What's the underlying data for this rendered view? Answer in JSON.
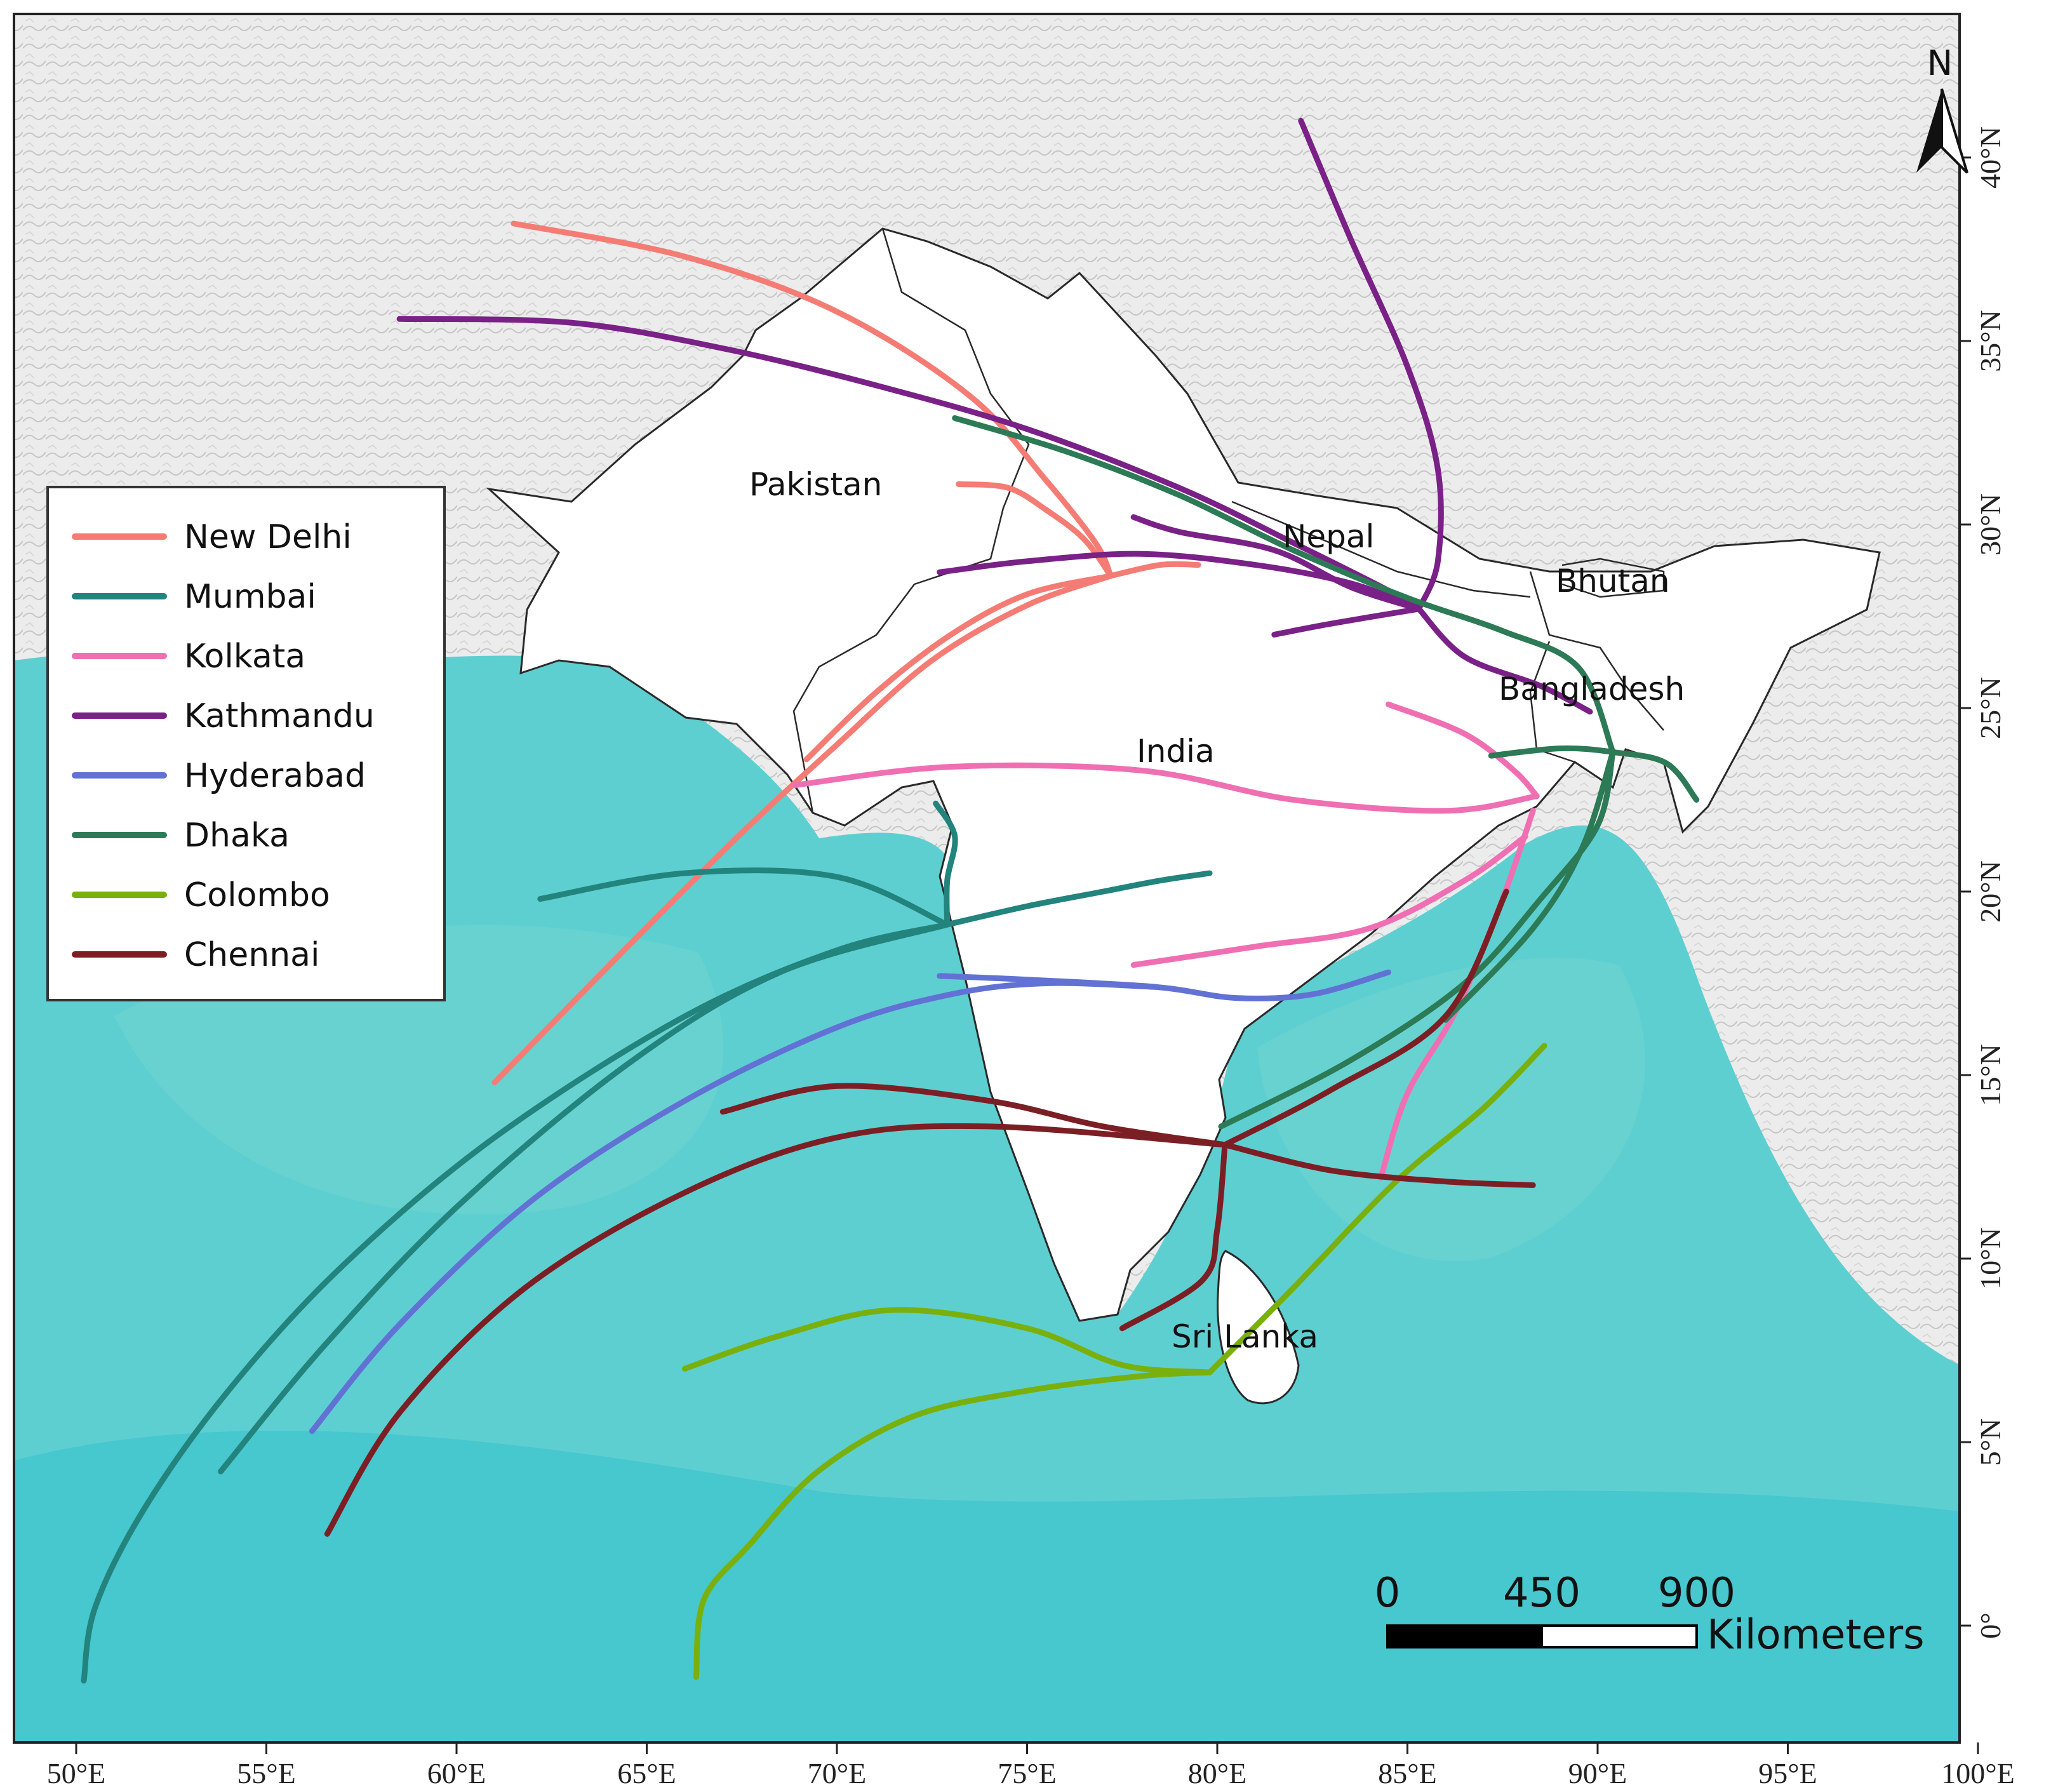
{
  "north_arrow": {
    "label": "N"
  },
  "axes": {
    "x_ticks": [
      "50°E",
      "55°E",
      "60°E",
      "65°E",
      "70°E",
      "75°E",
      "80°E",
      "85°E",
      "90°E",
      "95°E",
      "100°E"
    ],
    "y_ticks": [
      "0°",
      "5°N",
      "10°N",
      "15°N",
      "20°N",
      "25°N",
      "30°N",
      "35°N",
      "40°N"
    ]
  },
  "countries": [
    "Pakistan",
    "Nepal",
    "Bhutan",
    "Bangladesh",
    "India",
    "Sri Lanka"
  ],
  "scale_bar": {
    "ticks": [
      "0",
      "450",
      "900"
    ],
    "unit": "Kilometers"
  },
  "legend": [
    {
      "name": "New Delhi",
      "color": "#f47c74"
    },
    {
      "name": "Mumbai",
      "color": "#23837d"
    },
    {
      "name": "Kolkata",
      "color": "#ef6fb2"
    },
    {
      "name": "Kathmandu",
      "color": "#7a2187"
    },
    {
      "name": "Hyderabad",
      "color": "#6272d4"
    },
    {
      "name": "Dhaka",
      "color": "#2c7a56"
    },
    {
      "name": "Colombo",
      "color": "#79b00e"
    },
    {
      "name": "Chennai",
      "color": "#7c1f25"
    }
  ],
  "colors": {
    "ocean": "#5ecfd0",
    "ocean_deep": "#3fc3cc",
    "land": "#e9e9e9",
    "study_region": "#ffffff"
  },
  "trajectories": {
    "New Delhi": [
      [
        [
          61.5,
          38.2
        ],
        [
          66,
          37.3
        ],
        [
          70,
          35.8
        ],
        [
          73.5,
          33.5
        ],
        [
          75.5,
          31.2
        ],
        [
          76.8,
          29.5
        ],
        [
          77.2,
          28.6
        ]
      ],
      [
        [
          61,
          14.8
        ],
        [
          64.5,
          18.5
        ],
        [
          67.5,
          21.6
        ],
        [
          70,
          24
        ],
        [
          72.5,
          26.3
        ],
        [
          75,
          27.8
        ],
        [
          77.2,
          28.6
        ]
      ],
      [
        [
          69.2,
          23.6
        ],
        [
          71,
          25.4
        ],
        [
          73,
          27
        ],
        [
          75,
          28.1
        ],
        [
          77.2,
          28.6
        ]
      ],
      [
        [
          73.2,
          31.1
        ],
        [
          74.5,
          31
        ],
        [
          75.5,
          30.4
        ],
        [
          76.5,
          29.6
        ],
        [
          77.2,
          28.6
        ]
      ],
      [
        [
          77.2,
          28.6
        ],
        [
          78.5,
          28.9
        ],
        [
          79.5,
          28.9
        ]
      ]
    ],
    "Mumbai": [
      [
        [
          50.2,
          -1.5
        ],
        [
          50.5,
          0.5
        ],
        [
          51.8,
          3.2
        ],
        [
          54,
          6.4
        ],
        [
          57,
          9.8
        ],
        [
          61,
          13.3
        ],
        [
          66,
          16.6
        ],
        [
          70,
          18.4
        ],
        [
          72.9,
          19.1
        ]
      ],
      [
        [
          53.8,
          4.2
        ],
        [
          56.5,
          7.6
        ],
        [
          60,
          11.4
        ],
        [
          64.5,
          15.3
        ],
        [
          68.5,
          17.8
        ],
        [
          72.9,
          19.1
        ]
      ],
      [
        [
          62.2,
          19.8
        ],
        [
          66,
          20.5
        ],
        [
          70,
          20.4
        ],
        [
          72.9,
          19.1
        ]
      ],
      [
        [
          72.9,
          19.1
        ],
        [
          75,
          19.6
        ],
        [
          77,
          20
        ],
        [
          78.5,
          20.3
        ],
        [
          79.8,
          20.5
        ]
      ],
      [
        [
          72.6,
          22.4
        ],
        [
          73.1,
          21.5
        ],
        [
          72.9,
          20.3
        ],
        [
          72.9,
          19.1
        ]
      ]
    ],
    "Kolkata": [
      [
        [
          84.5,
          25.1
        ],
        [
          86.5,
          24.3
        ],
        [
          87.8,
          23.3
        ],
        [
          88.4,
          22.6
        ]
      ],
      [
        [
          68.9,
          22.9
        ],
        [
          73,
          23.4
        ],
        [
          78,
          23.3
        ],
        [
          82,
          22.5
        ],
        [
          86,
          22.2
        ],
        [
          88.4,
          22.6
        ]
      ],
      [
        [
          77.8,
          18
        ],
        [
          81,
          18.5
        ],
        [
          84,
          19
        ],
        [
          86.5,
          20.3
        ],
        [
          88.1,
          21.5
        ]
      ],
      [
        [
          84.3,
          12.2
        ],
        [
          85,
          14.5
        ],
        [
          86.3,
          16.8
        ],
        [
          87.5,
          19.8
        ],
        [
          88.3,
          22.2
        ]
      ]
    ],
    "Kathmandu": [
      [
        [
          58.5,
          35.6
        ],
        [
          63,
          35.5
        ],
        [
          67,
          34.8
        ],
        [
          71,
          33.8
        ],
        [
          75,
          32.6
        ],
        [
          79,
          31
        ],
        [
          82,
          29.5
        ],
        [
          84.5,
          28.2
        ],
        [
          85.3,
          27.7
        ]
      ],
      [
        [
          82.2,
          41
        ],
        [
          83.5,
          37.8
        ],
        [
          85,
          34.3
        ],
        [
          85.8,
          31.5
        ],
        [
          85.8,
          29
        ],
        [
          85.3,
          27.7
        ]
      ],
      [
        [
          72.7,
          28.7
        ],
        [
          75,
          29
        ],
        [
          78,
          29.2
        ],
        [
          81,
          28.9
        ],
        [
          83.5,
          28.4
        ],
        [
          85.3,
          27.7
        ]
      ],
      [
        [
          77.8,
          30.2
        ],
        [
          79,
          29.8
        ],
        [
          81.5,
          29.3
        ],
        [
          83.5,
          28.3
        ],
        [
          85.3,
          27.7
        ]
      ],
      [
        [
          81.5,
          27
        ],
        [
          83,
          27.3
        ],
        [
          85.3,
          27.7
        ]
      ],
      [
        [
          85.3,
          27.7
        ],
        [
          86.5,
          26.4
        ],
        [
          88.5,
          25.6
        ],
        [
          89.8,
          24.9
        ]
      ]
    ],
    "Hyderabad": [
      [
        [
          56.2,
          5.3
        ],
        [
          58.5,
          8.2
        ],
        [
          62,
          11.6
        ],
        [
          66,
          14.3
        ],
        [
          70,
          16.3
        ],
        [
          73,
          17.2
        ],
        [
          75.5,
          17.5
        ],
        [
          78.4,
          17.4
        ]
      ],
      [
        [
          72.7,
          17.7
        ],
        [
          75,
          17.6
        ],
        [
          78.4,
          17.4
        ],
        [
          80.5,
          17.1
        ],
        [
          82.5,
          17.2
        ],
        [
          84.5,
          17.8
        ]
      ]
    ],
    "Dhaka": [
      [
        [
          73.1,
          32.9
        ],
        [
          76,
          32
        ],
        [
          79,
          30.8
        ],
        [
          82,
          29.3
        ],
        [
          85,
          28
        ],
        [
          87.5,
          27.1
        ],
        [
          89.5,
          26.1
        ],
        [
          90.4,
          23.8
        ]
      ],
      [
        [
          80.1,
          13.6
        ],
        [
          83.5,
          15.4
        ],
        [
          86.5,
          17.5
        ],
        [
          88.5,
          19.8
        ],
        [
          90,
          21.8
        ],
        [
          90.4,
          23.8
        ]
      ],
      [
        [
          86,
          16.5
        ],
        [
          88.3,
          19
        ],
        [
          89.6,
          21.2
        ],
        [
          90.4,
          23.8
        ]
      ],
      [
        [
          87.2,
          23.7
        ],
        [
          89,
          23.9
        ],
        [
          90.4,
          23.8
        ],
        [
          91.8,
          23.5
        ],
        [
          92.6,
          22.5
        ]
      ]
    ],
    "Colombo": [
      [
        [
          66.3,
          -1.4
        ],
        [
          66.5,
          0.7
        ],
        [
          67.7,
          2.2
        ],
        [
          69.5,
          4.2
        ],
        [
          72,
          5.7
        ],
        [
          75,
          6.4
        ],
        [
          78,
          6.8
        ],
        [
          79.8,
          6.9
        ]
      ],
      [
        [
          66,
          7
        ],
        [
          68.5,
          7.9
        ],
        [
          71.5,
          8.6
        ],
        [
          75,
          8.1
        ],
        [
          77.5,
          7.1
        ],
        [
          79.8,
          6.9
        ]
      ],
      [
        [
          79.8,
          6.9
        ],
        [
          82,
          9.2
        ],
        [
          84.7,
          12.1
        ],
        [
          87,
          14.1
        ],
        [
          88.6,
          15.8
        ]
      ]
    ],
    "Chennai": [
      [
        [
          56.6,
          2.5
        ],
        [
          58.5,
          5.8
        ],
        [
          61.8,
          9.2
        ],
        [
          66,
          11.8
        ],
        [
          70,
          13.3
        ],
        [
          74,
          13.6
        ],
        [
          80.2,
          13.1
        ]
      ],
      [
        [
          67,
          14
        ],
        [
          70,
          14.7
        ],
        [
          74,
          14.3
        ],
        [
          77,
          13.6
        ],
        [
          80.2,
          13.1
        ]
      ],
      [
        [
          80.2,
          13.1
        ],
        [
          83,
          12.4
        ],
        [
          86,
          12.1
        ],
        [
          88.3,
          12
        ]
      ],
      [
        [
          80.2,
          13.1
        ],
        [
          83,
          14.6
        ],
        [
          86,
          16.6
        ],
        [
          87.6,
          20
        ]
      ],
      [
        [
          80.2,
          13.1
        ],
        [
          80,
          10.8
        ],
        [
          79.6,
          9.4
        ],
        [
          77.5,
          8.1
        ]
      ]
    ]
  }
}
